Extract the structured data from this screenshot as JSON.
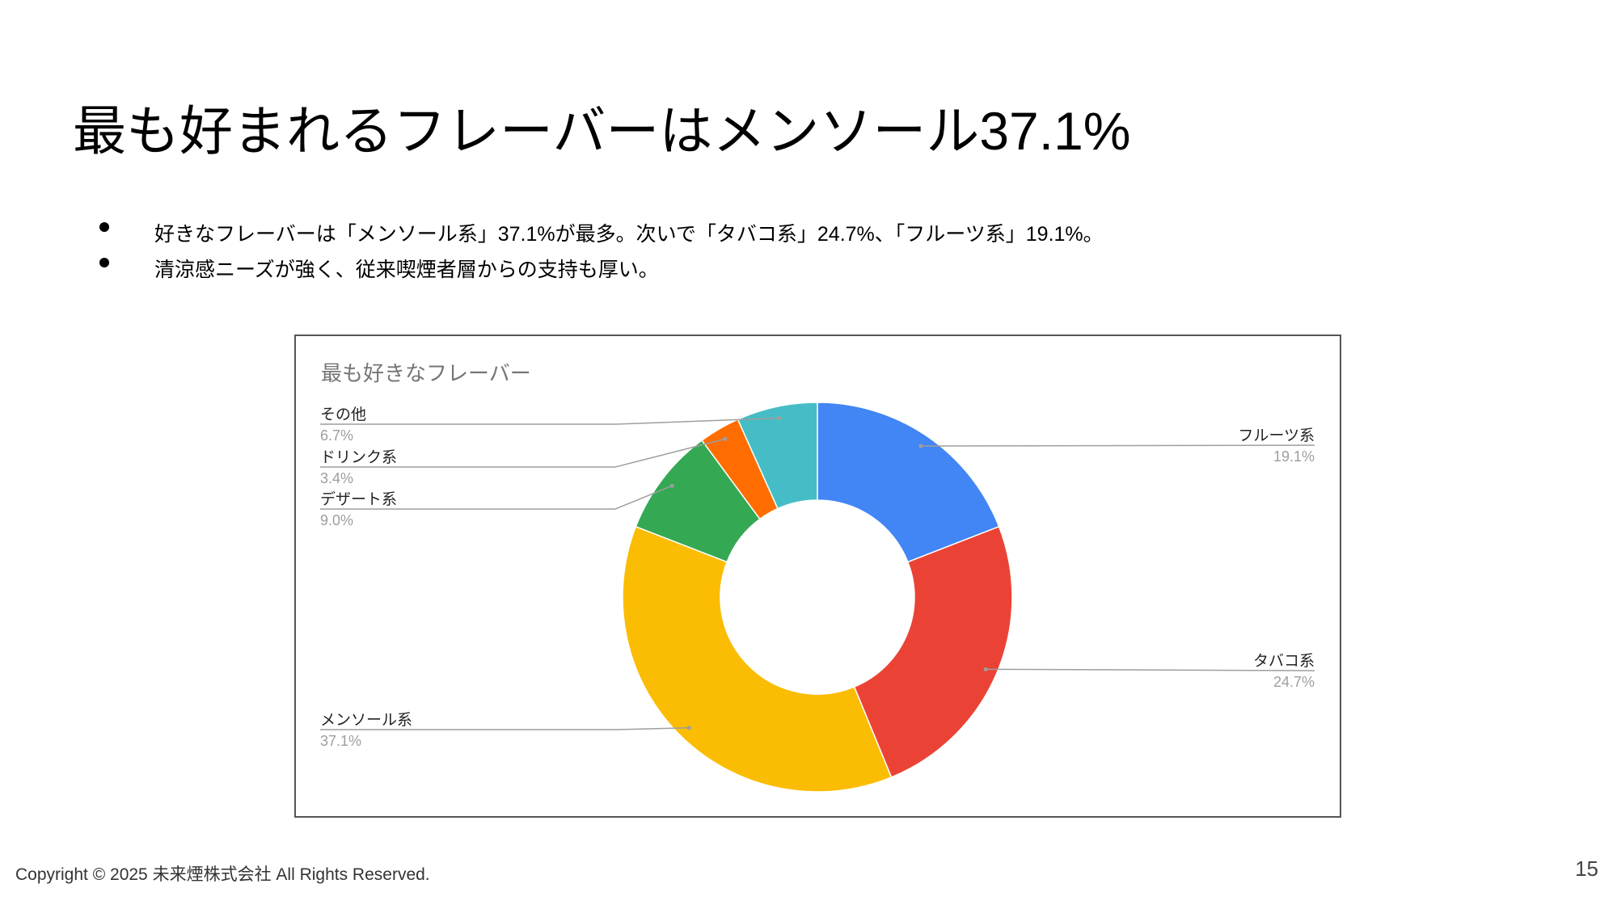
{
  "slide": {
    "title": "最も好まれるフレーバーはメンソール37.1%",
    "bullets": [
      "好きなフレーバーは「メンソール系」37.1%が最多。次いで「タバコ系」24.7%、「フルーツ系」19.1%。",
      "清涼感ニーズが強く、従来喫煙者層からの支持も厚い。"
    ],
    "footer": "Copyright © 2025 未来煙株式会社  All Rights Reserved.",
    "page_number": "15"
  },
  "chart_data": {
    "type": "donut",
    "title": "最も好きなフレーバー",
    "categories": [
      "フルーツ系",
      "タバコ系",
      "メンソール系",
      "デザート系",
      "ドリンク系",
      "その他"
    ],
    "values": [
      19.1,
      24.7,
      37.1,
      9.0,
      3.4,
      6.7
    ],
    "value_labels": [
      "19.1%",
      "24.7%",
      "37.1%",
      "9.0%",
      "3.4%",
      "6.7%"
    ],
    "colors": [
      "#4285f4",
      "#ea4335",
      "#fbbc04",
      "#34a853",
      "#ff6d01",
      "#46bdc6"
    ]
  }
}
